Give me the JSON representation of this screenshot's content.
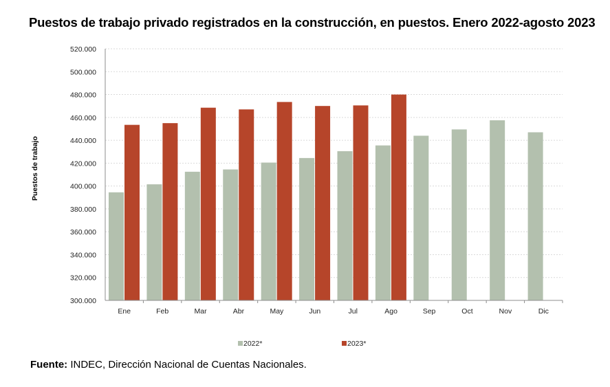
{
  "title": "Puestos de trabajo privado registrados en la construcción, en puestos. Enero 2022-agosto 2023",
  "source": {
    "label": "Fuente:",
    "text": " INDEC, Dirección Nacional de Cuentas Nacionales."
  },
  "chart_data": {
    "type": "bar",
    "title": "Puestos de trabajo privado registrados en la construcción, en puestos. Enero 2022-agosto 2023",
    "ylabel": "Puestos de trabajo",
    "xlabel": "",
    "ylim": [
      300000,
      520000
    ],
    "yticks": [
      300000,
      320000,
      340000,
      360000,
      380000,
      400000,
      420000,
      440000,
      460000,
      480000,
      500000,
      520000
    ],
    "ytick_labels": [
      "300.000",
      "320.000",
      "340.000",
      "360.000",
      "380.000",
      "400.000",
      "420.000",
      "440.000",
      "460.000",
      "480.000",
      "500.000",
      "520.000"
    ],
    "grid": true,
    "legend_position": "bottom",
    "categories": [
      "Ene",
      "Feb",
      "Mar",
      "Abr",
      "May",
      "Jun",
      "Jul",
      "Ago",
      "Sep",
      "Oct",
      "Nov",
      "Dic"
    ],
    "series": [
      {
        "name": "2022*",
        "color": "#b3c0ae",
        "values": [
          394500,
          401500,
          412500,
          414500,
          420500,
          424500,
          430500,
          435500,
          444000,
          449500,
          457500,
          447000
        ]
      },
      {
        "name": "2023*",
        "color": "#b6452a",
        "values": [
          453500,
          455000,
          468500,
          467000,
          473500,
          470000,
          470500,
          480000,
          null,
          null,
          null,
          null
        ]
      }
    ]
  }
}
